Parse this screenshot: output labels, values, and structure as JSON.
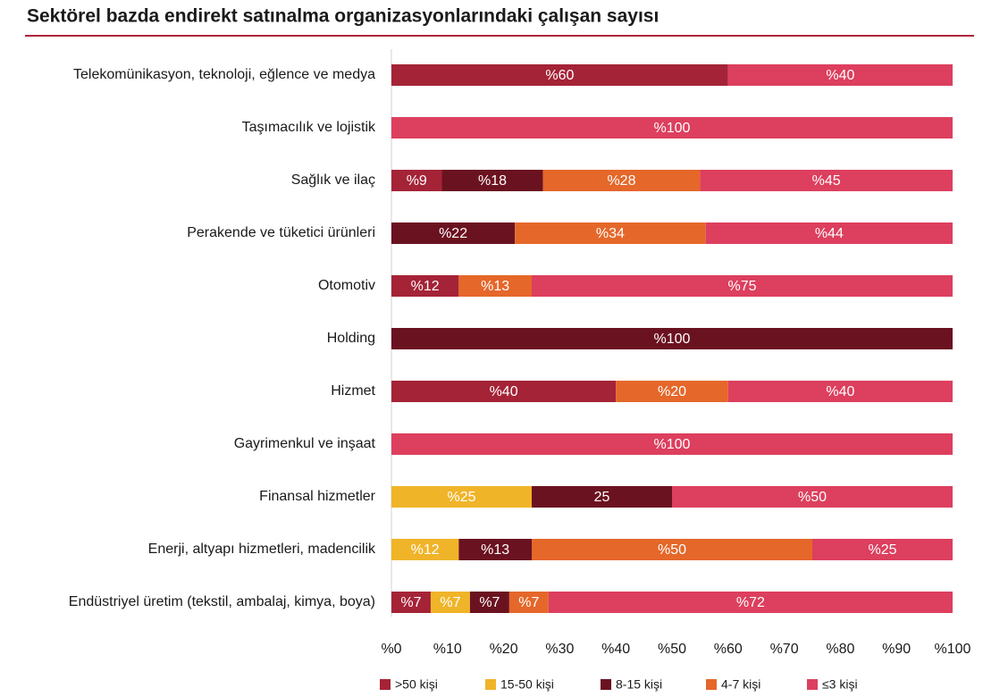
{
  "chart_data": {
    "type": "stacked-bar-horizontal",
    "title": "Sektörel bazda endirekt satınalma organizasyonlarındaki çalışan sayısı",
    "categories": [
      "Telekomünikasyon, teknoloji, eğlence ve medya",
      "Taşımacılık ve lojistik",
      "Sağlık ve ilaç",
      "Perakende ve tüketici ürünleri",
      "Otomotiv",
      "Holding",
      "Hizmet",
      "Gayrimenkul ve inşaat",
      "Finansal hizmetler",
      "Enerji, altyapı hizmetleri, madencilik",
      "Endüstriyel üretim (tekstil, ambalaj, kimya, boya)"
    ],
    "series": [
      {
        "name": ">50 kişi",
        "color": "#a52337",
        "values": [
          60,
          null,
          9,
          null,
          12,
          null,
          40,
          null,
          null,
          null,
          7
        ],
        "value_labels": [
          "%60",
          null,
          "%9",
          null,
          "%12",
          null,
          "%40",
          null,
          null,
          null,
          "%7"
        ]
      },
      {
        "name": "15-50 kişi",
        "color": "#f0b429",
        "values": [
          null,
          null,
          null,
          null,
          null,
          null,
          null,
          null,
          25,
          12,
          7
        ],
        "value_labels": [
          null,
          null,
          null,
          null,
          null,
          null,
          null,
          null,
          "%25",
          "%12",
          "%7"
        ]
      },
      {
        "name": "8-15 kişi",
        "color": "#6b1220",
        "values": [
          null,
          null,
          18,
          22,
          null,
          100,
          null,
          null,
          25,
          13,
          7
        ],
        "value_labels": [
          null,
          null,
          "%18",
          "%22",
          null,
          "%100",
          null,
          null,
          "25",
          "%13",
          "%7"
        ]
      },
      {
        "name": "4-7 kişi",
        "color": "#e5672a",
        "values": [
          null,
          null,
          28,
          34,
          13,
          null,
          20,
          null,
          null,
          50,
          7
        ],
        "value_labels": [
          null,
          null,
          "%28",
          "%34",
          "%13",
          null,
          "%20",
          null,
          null,
          "%50",
          "%7"
        ]
      },
      {
        "name": "≤3 kişi",
        "color": "#dd3f5e",
        "values": [
          40,
          100,
          45,
          44,
          75,
          null,
          40,
          100,
          50,
          25,
          72
        ],
        "value_labels": [
          "%40",
          "%100",
          "%45",
          "%44",
          "%75",
          null,
          "%40",
          "%100",
          "%50",
          "%25",
          "%72"
        ]
      }
    ],
    "xlim": [
      0,
      100
    ],
    "xticks": [
      {
        "value": 0,
        "label": "%0"
      },
      {
        "value": 10,
        "label": "%10"
      },
      {
        "value": 20,
        "label": "%20"
      },
      {
        "value": 30,
        "label": "%30"
      },
      {
        "value": 40,
        "label": "%40"
      },
      {
        "value": 50,
        "label": "%50"
      },
      {
        "value": 60,
        "label": "%60"
      },
      {
        "value": 70,
        "label": "%70"
      },
      {
        "value": 80,
        "label": "%80"
      },
      {
        "value": 90,
        "label": "%90"
      },
      {
        "value": 100,
        "label": "%100"
      }
    ]
  }
}
